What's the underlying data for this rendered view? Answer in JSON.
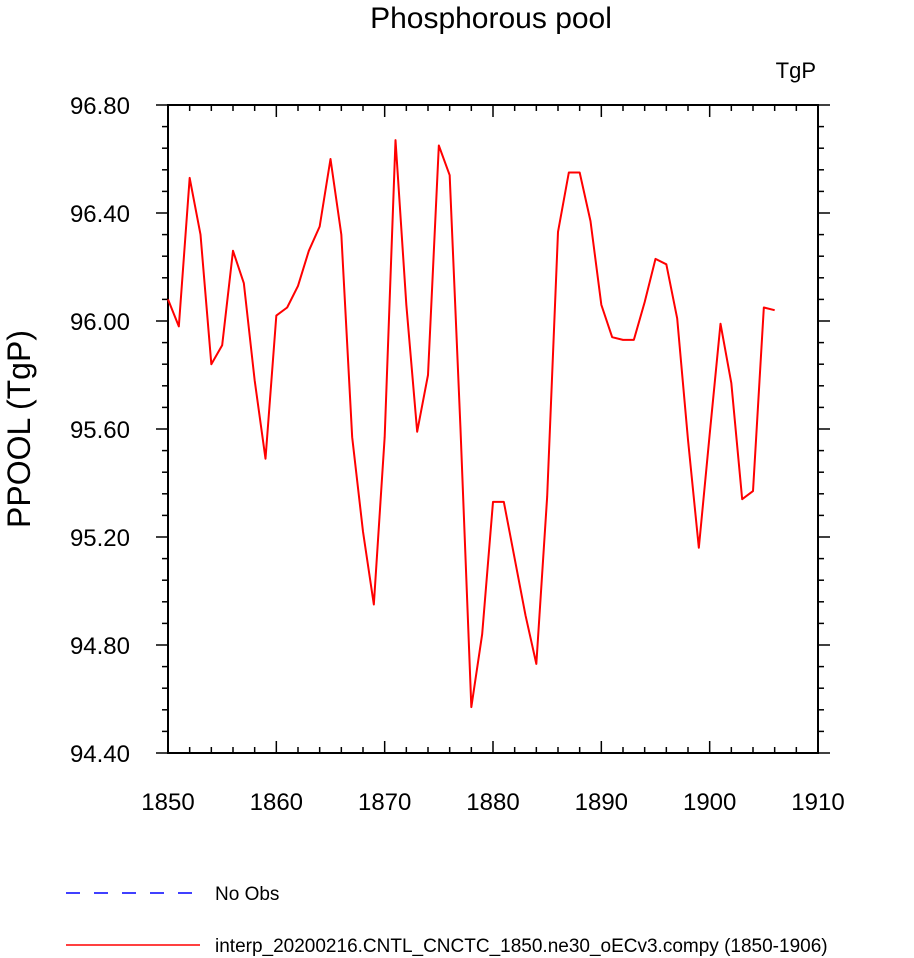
{
  "chart_data": {
    "type": "line",
    "title": "Phosphorous pool",
    "units_label": "TgP",
    "ylabel": "PPOOL  (TgP)",
    "xlabel": "",
    "xlim": [
      1850,
      1910
    ],
    "ylim": [
      94.4,
      96.8
    ],
    "xticks": [
      "1850",
      "1860",
      "1870",
      "1880",
      "1890",
      "1900",
      "1910"
    ],
    "yticks": [
      "94.40",
      "94.80",
      "95.20",
      "95.60",
      "96.00",
      "96.40",
      "96.80"
    ],
    "grid": false,
    "legend_placement": "bottom-left",
    "x": [
      1850,
      1851,
      1852,
      1853,
      1854,
      1855,
      1856,
      1857,
      1858,
      1859,
      1860,
      1861,
      1862,
      1863,
      1864,
      1865,
      1866,
      1867,
      1868,
      1869,
      1870,
      1871,
      1872,
      1873,
      1874,
      1875,
      1876,
      1877,
      1878,
      1879,
      1880,
      1881,
      1882,
      1883,
      1884,
      1885,
      1886,
      1887,
      1888,
      1889,
      1890,
      1891,
      1892,
      1893,
      1894,
      1895,
      1896,
      1897,
      1898,
      1899,
      1900,
      1901,
      1902,
      1903,
      1904,
      1905,
      1906
    ],
    "series": [
      {
        "name": "interp_20200216.CNTL_CNCTC_1850.ne30_oECv3.compy (1850-1906)",
        "color": "#ff0000",
        "style": "solid",
        "values": [
          96.08,
          95.98,
          96.53,
          96.32,
          95.84,
          95.91,
          96.26,
          96.14,
          95.78,
          95.49,
          96.02,
          96.05,
          96.13,
          96.26,
          96.35,
          96.6,
          96.32,
          95.57,
          95.22,
          94.95,
          95.57,
          96.67,
          96.06,
          95.59,
          95.8,
          96.65,
          96.54,
          95.6,
          94.57,
          94.84,
          95.33,
          95.33,
          95.12,
          94.91,
          94.73,
          95.35,
          96.33,
          96.55,
          96.55,
          96.37,
          96.06,
          95.94,
          95.93,
          95.93,
          96.07,
          96.23,
          96.21,
          96.01,
          95.56,
          95.16,
          95.58,
          95.99,
          95.77,
          95.34,
          95.37,
          96.05,
          96.04
        ]
      }
    ],
    "legend": [
      {
        "label": "No Obs",
        "color": "#0000ff",
        "style": "dashed"
      },
      {
        "label": "interp_20200216.CNTL_CNCTC_1850.ne30_oECv3.compy (1850-1906)",
        "color": "#ff0000",
        "style": "solid"
      }
    ]
  }
}
